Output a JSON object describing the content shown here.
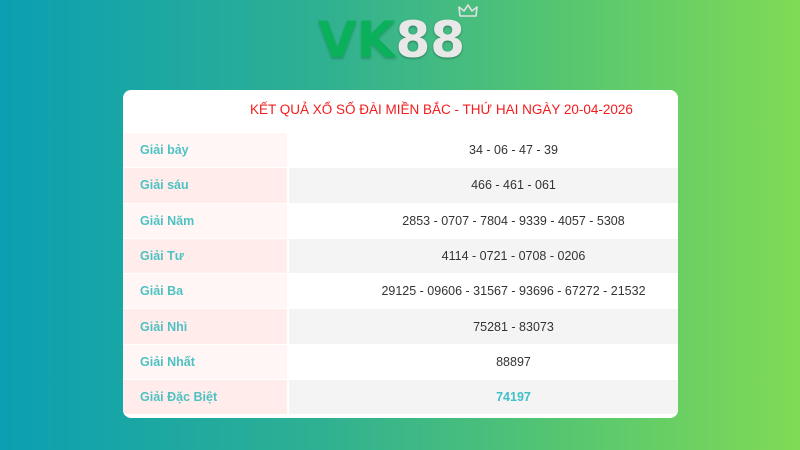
{
  "logo": {
    "text_vk": "VK",
    "text_num": "88"
  },
  "title": "KẾT QUẢ XỔ SỐ ĐÀI MIỀN BẮC - THỨ HAI NGÀY 20-04-2026",
  "rows": [
    {
      "label": "Giải bảy",
      "value": "34 - 06 - 47 - 39"
    },
    {
      "label": "Giải sáu",
      "value": "466 - 461 - 061"
    },
    {
      "label": "Giải Năm",
      "value": "2853 - 0707 - 7804 - 9339 - 4057 - 5308"
    },
    {
      "label": "Giải Tư",
      "value": "4114 - 0721 - 0708 - 0206"
    },
    {
      "label": "Giải Ba",
      "value": "29125 - 09606 - 31567 - 93696 - 67272 - 21532"
    },
    {
      "label": "Giải Nhì",
      "value": "75281 - 83073"
    },
    {
      "label": "Giải Nhất",
      "value": "88897"
    },
    {
      "label": "Giải Đặc Biệt",
      "value": "74197"
    }
  ],
  "colors": {
    "title": "#f21c1c",
    "label": "#4ec2c2",
    "special": "#3fbfc6"
  }
}
